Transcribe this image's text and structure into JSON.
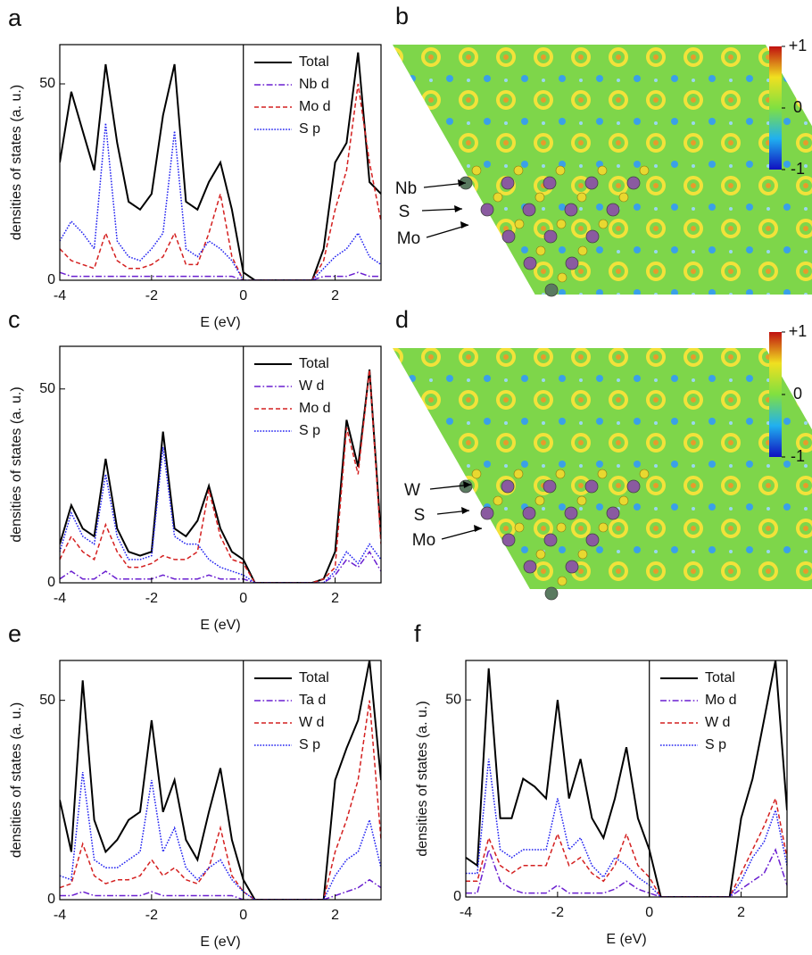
{
  "chart_data": [
    {
      "type": "line",
      "label": "a",
      "xlabel": "E (eV)",
      "ylabel": "densities of states (a. u.)",
      "x": [
        -4,
        -3.75,
        -3.5,
        -3.25,
        -3,
        -2.75,
        -2.5,
        -2.25,
        -2,
        -1.75,
        -1.5,
        -1.25,
        -1,
        -0.75,
        -0.5,
        -0.25,
        0,
        0.25,
        0.5,
        0.75,
        1,
        1.25,
        1.5,
        1.75,
        2,
        2.25,
        2.5,
        2.75,
        3
      ],
      "xlim": [
        -4,
        3
      ],
      "xticks": [
        -4,
        -2,
        0,
        2
      ],
      "ylim": [
        0,
        60
      ],
      "yticks": [
        0,
        50
      ],
      "legend": "upper right",
      "series": [
        {
          "name": "Total",
          "color": "#000000",
          "dash": "solid",
          "values": [
            30,
            48,
            38,
            28,
            55,
            35,
            20,
            18,
            22,
            42,
            55,
            20,
            18,
            25,
            30,
            18,
            2,
            0,
            0,
            0,
            0,
            0,
            0,
            8,
            30,
            35,
            58,
            25,
            22
          ]
        },
        {
          "name": "Nb d",
          "color": "#6a1fd0",
          "dash": "dashdot",
          "values": [
            2,
            1,
            1,
            1,
            1,
            1,
            1,
            1,
            1,
            1,
            1,
            1,
            1,
            1,
            1,
            1,
            0,
            0,
            0,
            0,
            0,
            0,
            0,
            1,
            1,
            1,
            2,
            1,
            1
          ]
        },
        {
          "name": "Mo d",
          "color": "#d42020",
          "dash": "dash",
          "values": [
            8,
            5,
            4,
            3,
            12,
            5,
            3,
            3,
            4,
            6,
            12,
            4,
            4,
            12,
            22,
            6,
            0,
            0,
            0,
            0,
            0,
            0,
            0,
            5,
            18,
            28,
            50,
            30,
            15
          ]
        },
        {
          "name": "S p",
          "color": "#2020f0",
          "dash": "dot",
          "values": [
            10,
            15,
            12,
            8,
            40,
            10,
            6,
            5,
            8,
            12,
            38,
            8,
            6,
            10,
            8,
            5,
            0,
            0,
            0,
            0,
            0,
            0,
            0,
            3,
            6,
            8,
            12,
            6,
            4
          ]
        }
      ]
    },
    {
      "type": "image",
      "label": "b",
      "atom_labels": [
        "Nb",
        "S",
        "Mo"
      ],
      "clim": [
        -1,
        1
      ],
      "colorbar_ticks": [
        {
          "value": 1,
          "label": "+1"
        },
        0,
        -1
      ]
    },
    {
      "type": "line",
      "label": "c",
      "xlabel": "E (eV)",
      "ylabel": "densities of states (a. u.)",
      "x": [
        -4,
        -3.75,
        -3.5,
        -3.25,
        -3,
        -2.75,
        -2.5,
        -2.25,
        -2,
        -1.75,
        -1.5,
        -1.25,
        -1,
        -0.75,
        -0.5,
        -0.25,
        0,
        0.25,
        0.5,
        0.75,
        1,
        1.25,
        1.5,
        1.75,
        2,
        2.25,
        2.5,
        2.75,
        3
      ],
      "xlim": [
        -4,
        3
      ],
      "xticks": [
        -4,
        -2,
        0,
        2
      ],
      "ylim": [
        0,
        61
      ],
      "yticks": [
        0,
        50
      ],
      "legend": "upper right",
      "series": [
        {
          "name": "Total",
          "color": "#000000",
          "dash": "solid",
          "values": [
            10,
            20,
            14,
            12,
            32,
            14,
            8,
            7,
            8,
            39,
            14,
            12,
            16,
            25,
            14,
            8,
            6,
            0,
            0,
            0,
            0,
            0,
            0,
            1,
            8,
            42,
            30,
            55,
            12
          ]
        },
        {
          "name": "W d",
          "color": "#6a1fd0",
          "dash": "dashdot",
          "values": [
            1,
            3,
            1,
            1,
            3,
            1,
            1,
            1,
            1,
            2,
            1,
            1,
            1,
            2,
            1,
            1,
            1,
            0,
            0,
            0,
            0,
            0,
            0,
            0,
            2,
            6,
            4,
            8,
            3
          ]
        },
        {
          "name": "Mo d",
          "color": "#d42020",
          "dash": "dash",
          "values": [
            6,
            12,
            8,
            6,
            15,
            8,
            4,
            4,
            5,
            7,
            6,
            6,
            8,
            24,
            12,
            6,
            5,
            0,
            0,
            0,
            0,
            0,
            0,
            1,
            4,
            40,
            28,
            55,
            10
          ]
        },
        {
          "name": "S p",
          "color": "#2020f0",
          "dash": "dot",
          "values": [
            8,
            18,
            12,
            10,
            28,
            12,
            6,
            6,
            7,
            35,
            12,
            10,
            10,
            6,
            4,
            3,
            2,
            0,
            0,
            0,
            0,
            0,
            0,
            0,
            3,
            8,
            5,
            10,
            6
          ]
        }
      ]
    },
    {
      "type": "image",
      "label": "d",
      "atom_labels": [
        "W",
        "S",
        "Mo"
      ],
      "clim": [
        -1,
        1
      ],
      "colorbar_ticks": [
        {
          "value": 1,
          "label": "+1"
        },
        0,
        -1
      ]
    },
    {
      "type": "line",
      "label": "e",
      "xlabel": "E (eV)",
      "ylabel": "densities of states (a. u.)",
      "x": [
        -4,
        -3.75,
        -3.5,
        -3.25,
        -3,
        -2.75,
        -2.5,
        -2.25,
        -2,
        -1.75,
        -1.5,
        -1.25,
        -1,
        -0.75,
        -0.5,
        -0.25,
        0,
        0.25,
        0.5,
        0.75,
        1,
        1.25,
        1.5,
        1.75,
        2,
        2.25,
        2.5,
        2.75,
        3
      ],
      "xlim": [
        -4,
        3
      ],
      "xticks": [
        -4,
        -2,
        0,
        2
      ],
      "ylim": [
        0,
        60
      ],
      "yticks": [
        0,
        50
      ],
      "legend": "upper right",
      "series": [
        {
          "name": "Total",
          "color": "#000000",
          "dash": "solid",
          "values": [
            25,
            12,
            55,
            20,
            12,
            15,
            20,
            22,
            45,
            22,
            30,
            15,
            10,
            22,
            33,
            15,
            5,
            0,
            0,
            0,
            0,
            0,
            0,
            0,
            30,
            38,
            45,
            60,
            30
          ]
        },
        {
          "name": "Ta d",
          "color": "#6a1fd0",
          "dash": "dashdot",
          "values": [
            1,
            1,
            2,
            1,
            1,
            1,
            1,
            1,
            2,
            1,
            1,
            1,
            1,
            1,
            1,
            1,
            0,
            0,
            0,
            0,
            0,
            0,
            0,
            0,
            1,
            2,
            3,
            5,
            3
          ]
        },
        {
          "name": "W d",
          "color": "#d42020",
          "dash": "dash",
          "values": [
            3,
            4,
            14,
            6,
            4,
            5,
            5,
            6,
            10,
            6,
            8,
            5,
            4,
            8,
            18,
            6,
            2,
            0,
            0,
            0,
            0,
            0,
            0,
            0,
            12,
            20,
            30,
            50,
            15
          ]
        },
        {
          "name": "S p",
          "color": "#2020f0",
          "dash": "dot",
          "values": [
            6,
            5,
            32,
            10,
            8,
            8,
            10,
            12,
            30,
            12,
            18,
            8,
            5,
            8,
            10,
            5,
            2,
            0,
            0,
            0,
            0,
            0,
            0,
            0,
            6,
            10,
            12,
            20,
            8
          ]
        }
      ]
    },
    {
      "type": "line",
      "label": "f",
      "xlabel": "E (eV)",
      "ylabel": "densities of states (a. u.)",
      "x": [
        -4,
        -3.75,
        -3.5,
        -3.25,
        -3,
        -2.75,
        -2.5,
        -2.25,
        -2,
        -1.75,
        -1.5,
        -1.25,
        -1,
        -0.75,
        -0.5,
        -0.25,
        0,
        0.25,
        0.5,
        0.75,
        1,
        1.25,
        1.5,
        1.75,
        2,
        2.25,
        2.5,
        2.75,
        3
      ],
      "xlim": [
        -4,
        3
      ],
      "xticks": [
        -4,
        -2,
        0,
        2
      ],
      "ylim": [
        0,
        60
      ],
      "yticks": [
        0,
        50
      ],
      "legend": "upper right",
      "series": [
        {
          "name": "Total",
          "color": "#000000",
          "dash": "solid",
          "values": [
            10,
            8,
            58,
            20,
            20,
            30,
            28,
            25,
            50,
            25,
            35,
            20,
            15,
            25,
            38,
            20,
            12,
            0,
            0,
            0,
            0,
            0,
            0,
            0,
            20,
            30,
            45,
            60,
            22
          ]
        },
        {
          "name": "Mo d",
          "color": "#6a1fd0",
          "dash": "dashdot",
          "values": [
            1,
            1,
            12,
            4,
            2,
            1,
            1,
            1,
            3,
            1,
            1,
            1,
            1,
            2,
            4,
            2,
            1,
            0,
            0,
            0,
            0,
            0,
            0,
            0,
            2,
            4,
            6,
            12,
            3
          ]
        },
        {
          "name": "W d",
          "color": "#d42020",
          "dash": "dash",
          "values": [
            4,
            4,
            15,
            8,
            6,
            8,
            8,
            8,
            16,
            8,
            10,
            6,
            4,
            8,
            16,
            8,
            5,
            0,
            0,
            0,
            0,
            0,
            0,
            0,
            6,
            12,
            18,
            25,
            10
          ]
        },
        {
          "name": "S p",
          "color": "#2020f0",
          "dash": "dot",
          "values": [
            6,
            6,
            35,
            12,
            10,
            12,
            12,
            12,
            25,
            12,
            15,
            8,
            5,
            10,
            8,
            5,
            3,
            0,
            0,
            0,
            0,
            0,
            0,
            0,
            4,
            10,
            14,
            22,
            8
          ]
        }
      ]
    }
  ]
}
